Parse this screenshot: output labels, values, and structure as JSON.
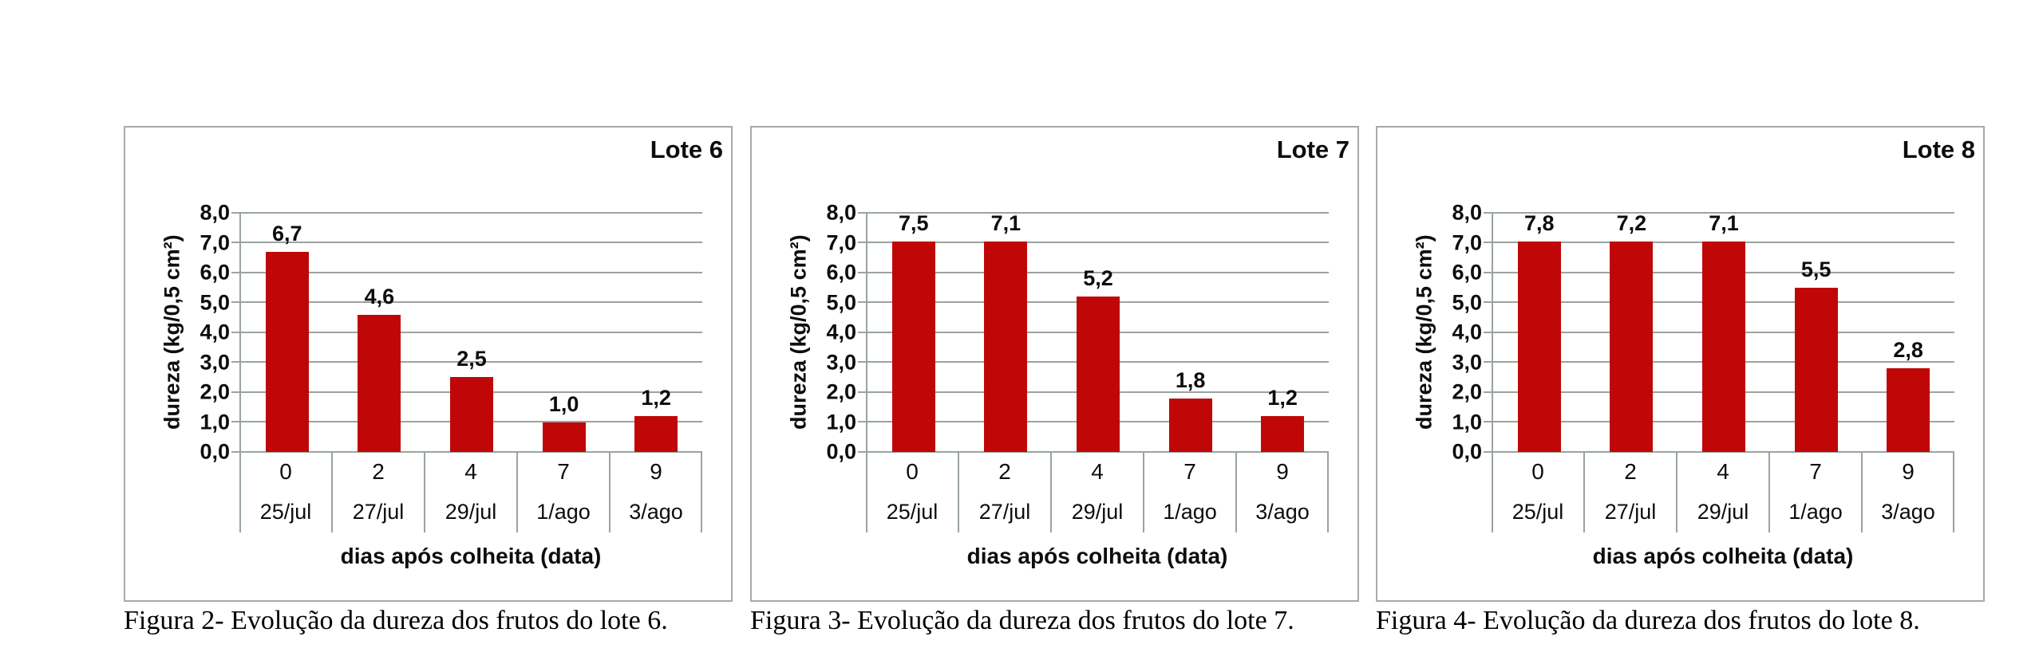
{
  "colors": {
    "bar": "#c00707",
    "gridline": "#9aa49d",
    "panel_border": "#a4aca6",
    "text": "#0d0d0d"
  },
  "chart_data": [
    {
      "type": "bar",
      "title": "Lote 6",
      "categories": [
        "0",
        "2",
        "4",
        "7",
        "9"
      ],
      "category_dates": [
        "25/jul",
        "27/jul",
        "29/jul",
        "1/ago",
        "3/ago"
      ],
      "values": [
        6.7,
        4.6,
        2.5,
        1.0,
        1.2
      ],
      "value_labels": [
        "6,7",
        "4,6",
        "2,5",
        "1,0",
        "1,2"
      ],
      "xlabel": "dias após colheita (data)",
      "ylabel": "dureza (kg/0,5 cm²)",
      "ylim": [
        0,
        8
      ],
      "ytick_labels": [
        "8,0",
        "7,0",
        "6,0",
        "5,0",
        "4,0",
        "3,0",
        "2,0",
        "1,0",
        "0,0"
      ],
      "grid": "horizontal",
      "legend": "none",
      "caption": "Figura 2- Evolução da dureza dos frutos do lote 6."
    },
    {
      "type": "bar",
      "title": "Lote 7",
      "categories": [
        "0",
        "2",
        "4",
        "7",
        "9"
      ],
      "category_dates": [
        "25/jul",
        "27/jul",
        "29/jul",
        "1/ago",
        "3/ago"
      ],
      "values": [
        7.5,
        7.1,
        5.2,
        1.8,
        1.2
      ],
      "value_labels": [
        "7,5",
        "7,1",
        "5,2",
        "1,8",
        "1,2"
      ],
      "xlabel": "dias após colheita (data)",
      "ylabel": "dureza (kg/0,5 cm²)",
      "ylim": [
        0,
        8
      ],
      "ytick_labels": [
        "8,0",
        "7,0",
        "6,0",
        "5,0",
        "4,0",
        "3,0",
        "2,0",
        "1,0",
        "0,0"
      ],
      "grid": "horizontal",
      "legend": "none",
      "caption": "Figura 3- Evolução da dureza dos frutos do lote 7."
    },
    {
      "type": "bar",
      "title": "Lote 8",
      "categories": [
        "0",
        "2",
        "4",
        "7",
        "9"
      ],
      "category_dates": [
        "25/jul",
        "27/jul",
        "29/jul",
        "1/ago",
        "3/ago"
      ],
      "values": [
        7.8,
        7.2,
        7.1,
        5.5,
        2.8
      ],
      "value_labels": [
        "7,8",
        "7,2",
        "7,1",
        "5,5",
        "2,8"
      ],
      "xlabel": "dias após colheita (data)",
      "ylabel": "dureza (kg/0,5 cm²)",
      "ylim": [
        0,
        8
      ],
      "ytick_labels": [
        "8,0",
        "7,0",
        "6,0",
        "5,0",
        "4,0",
        "3,0",
        "2,0",
        "1,0",
        "0,0"
      ],
      "grid": "horizontal",
      "legend": "none",
      "caption": "Figura 4- Evolução da dureza dos frutos do lote 8."
    }
  ]
}
